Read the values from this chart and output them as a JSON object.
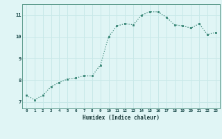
{
  "x": [
    0,
    1,
    2,
    3,
    4,
    5,
    6,
    7,
    8,
    9,
    10,
    11,
    12,
    13,
    14,
    15,
    16,
    17,
    18,
    19,
    20,
    21,
    22,
    23
  ],
  "y": [
    7.3,
    7.1,
    7.3,
    7.7,
    7.9,
    8.05,
    8.1,
    8.2,
    8.2,
    8.7,
    10.0,
    10.5,
    10.6,
    10.55,
    11.0,
    11.15,
    11.15,
    10.9,
    10.55,
    10.5,
    10.4,
    10.6,
    10.1,
    10.2
  ],
  "xlabel": "Humidex (Indice chaleur)",
  "line_color": "#2e7f6e",
  "marker_color": "#2e7f6e",
  "bg_color": "#e0f5f5",
  "grid_color": "#c8e8e8",
  "yticks": [
    7,
    8,
    9,
    10,
    11
  ],
  "xticks": [
    0,
    1,
    2,
    3,
    4,
    5,
    6,
    7,
    8,
    9,
    10,
    11,
    12,
    13,
    14,
    15,
    16,
    17,
    18,
    19,
    20,
    21,
    22,
    23
  ],
  "ylim": [
    6.7,
    11.5
  ],
  "xlim": [
    -0.5,
    23.5
  ]
}
